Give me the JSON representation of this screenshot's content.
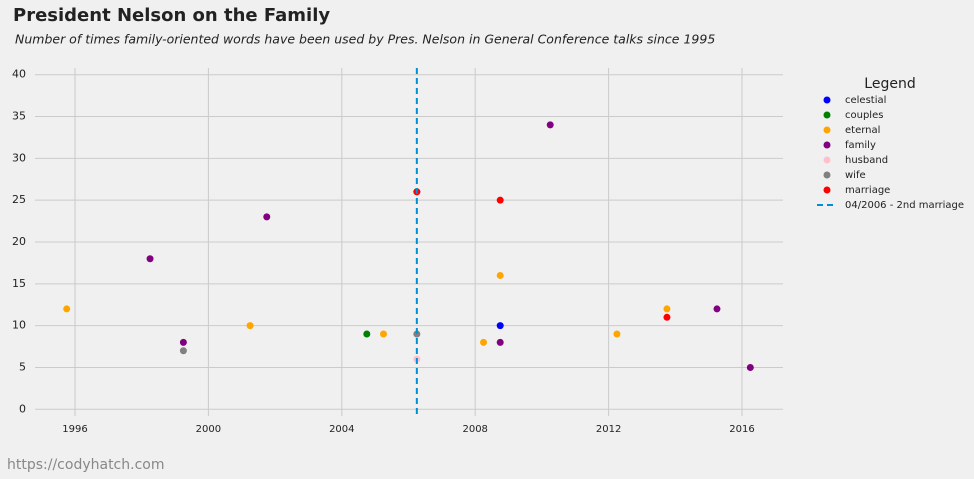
{
  "chart_data": {
    "type": "scatter",
    "title": "President Nelson on the Family",
    "subtitle": "Number of times family-oriented words have been used by Pres. Nelson in General Conference talks since 1995",
    "legend_title": "Legend",
    "source": "https://codyhatch.com",
    "series": [
      {
        "name": "celestial",
        "color": "#0000ff",
        "x": [
          2008.75
        ],
        "values": [
          10
        ]
      },
      {
        "name": "couples",
        "color": "#008000",
        "x": [
          2004.75
        ],
        "values": [
          9
        ]
      },
      {
        "name": "eternal",
        "color": "#ffa500",
        "x": [
          1995.75,
          2001.25,
          2005.25,
          2008.25,
          2008.75,
          2012.25,
          2013.75
        ],
        "values": [
          12,
          10,
          9,
          8,
          16,
          9,
          12
        ]
      },
      {
        "name": "family",
        "color": "#800080",
        "x": [
          1998.25,
          1999.25,
          2001.75,
          2006.25,
          2008.75,
          2010.25,
          2015.25,
          2016.25
        ],
        "values": [
          18,
          8,
          23,
          26,
          8,
          34,
          12,
          5
        ]
      },
      {
        "name": "husband",
        "color": "#ffc0cb",
        "x": [
          2006.25
        ],
        "values": [
          6
        ]
      },
      {
        "name": "wife",
        "color": "#808080",
        "x": [
          1999.25,
          2006.25
        ],
        "values": [
          7,
          9
        ]
      },
      {
        "name": "marriage",
        "color": "#ff0000",
        "x": [
          2006.25,
          2008.75,
          2013.75
        ],
        "values": [
          26,
          25,
          11
        ]
      }
    ],
    "vline": {
      "x": 2006.25,
      "label": "04/2006 - 2nd marriage",
      "color": "#008fd5"
    },
    "xlim": [
      1994.8,
      2017.23
    ],
    "ylim": [
      -0.8,
      40.8
    ],
    "xticks": [
      1996,
      2000,
      2004,
      2008,
      2012,
      2016
    ],
    "yticks": [
      0,
      5,
      10,
      15,
      20,
      25,
      30,
      35,
      40
    ],
    "grid": true
  }
}
